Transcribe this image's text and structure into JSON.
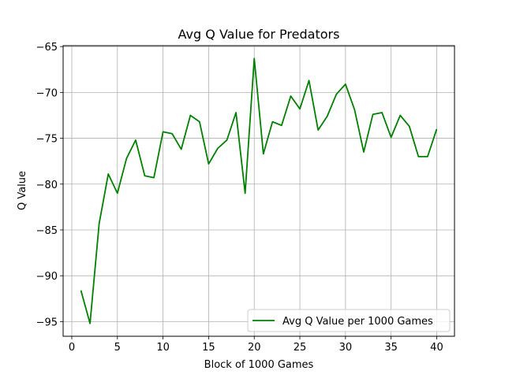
{
  "chart_data": {
    "type": "line",
    "title": "Avg Q Value for Predators",
    "xlabel": "Block of 1000 Games",
    "ylabel": "Q Value",
    "xlim": [
      -0.95,
      41.95
    ],
    "ylim": [
      -96.6,
      -64.9
    ],
    "xticks": [
      0,
      5,
      10,
      15,
      20,
      25,
      30,
      35,
      40
    ],
    "yticks": [
      -95,
      -90,
      -85,
      -80,
      -75,
      -70,
      -65
    ],
    "xtick_labels": [
      "0",
      "5",
      "10",
      "15",
      "20",
      "25",
      "30",
      "35",
      "40"
    ],
    "ytick_labels": [
      "−95",
      "−90",
      "−85",
      "−80",
      "−75",
      "−70",
      "−65"
    ],
    "grid": true,
    "legend_position": "lower-right",
    "series": [
      {
        "name": "Avg Q Value per 1000 Games",
        "color": "#008000",
        "x": [
          1,
          2,
          3,
          4,
          5,
          6,
          7,
          8,
          9,
          10,
          11,
          12,
          13,
          14,
          15,
          16,
          17,
          18,
          19,
          20,
          21,
          22,
          23,
          24,
          25,
          26,
          27,
          28,
          29,
          30,
          31,
          32,
          33,
          34,
          35,
          36,
          37,
          38,
          39,
          40
        ],
        "values": [
          -91.6,
          -95.2,
          -84.3,
          -78.9,
          -81.0,
          -77.2,
          -75.2,
          -79.1,
          -79.3,
          -74.3,
          -74.5,
          -76.2,
          -72.5,
          -73.2,
          -77.8,
          -76.1,
          -75.2,
          -72.2,
          -81.0,
          -66.3,
          -76.7,
          -73.2,
          -73.6,
          -70.4,
          -71.8,
          -68.7,
          -74.1,
          -72.6,
          -70.2,
          -69.1,
          -71.9,
          -76.5,
          -72.4,
          -72.2,
          -74.9,
          -72.5,
          -73.7,
          -77.0,
          -77.0,
          -74.0
        ]
      }
    ]
  }
}
